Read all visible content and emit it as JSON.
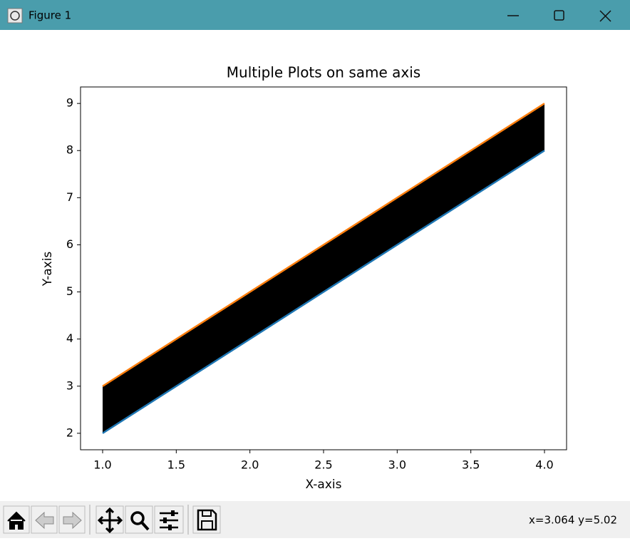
{
  "window": {
    "title": "Figure 1"
  },
  "status": "x=3.064 y=5.02",
  "chart_data": {
    "type": "line",
    "title": "Multiple Plots on same axis",
    "x_label": "X-axis",
    "y_label": "Y-axis",
    "x": [
      1,
      2,
      3,
      4
    ],
    "series": [
      {
        "color": "#1f77b4",
        "values": [
          2,
          4,
          6,
          8
        ]
      },
      {
        "color": "#ff7f0e",
        "values": [
          3,
          5,
          7,
          9
        ]
      }
    ],
    "fill_between": {
      "color": "#000000"
    },
    "xlim": [
      0.85,
      4.15
    ],
    "ylim": [
      1.65,
      9.35
    ],
    "xticks": [
      {
        "value": 1,
        "label": "1.0"
      },
      {
        "value": 1.5,
        "label": "1.5"
      },
      {
        "value": 2,
        "label": "2.0"
      },
      {
        "value": 2.5,
        "label": "2.5"
      },
      {
        "value": 3,
        "label": "3.0"
      },
      {
        "value": 3.5,
        "label": "3.5"
      },
      {
        "value": 4,
        "label": "4.0"
      }
    ],
    "yticks": [
      2,
      3,
      4,
      5,
      6,
      7,
      8,
      9
    ]
  }
}
